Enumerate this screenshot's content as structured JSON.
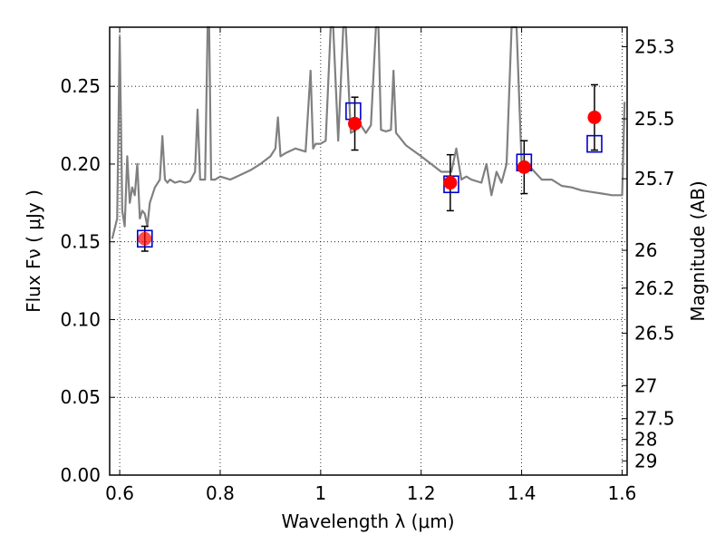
{
  "chart_data": {
    "type": "scatter",
    "xlabel": "Wavelength  λ (μm)",
    "ylabel": "Flux  Fν  ( μJy )",
    "ylabel_right": "Magnitude (AB)",
    "xlim": [
      0.58,
      1.61
    ],
    "ylim": [
      0.0,
      0.288
    ],
    "grid": true,
    "x_ticks": [
      0.6,
      0.8,
      1.0,
      1.2,
      1.4,
      1.6
    ],
    "x_tick_labels": [
      "0.6",
      "0.8",
      "1",
      "1.2",
      "1.4",
      "1.6"
    ],
    "y_ticks": [
      0.0,
      0.05,
      0.1,
      0.15,
      0.2,
      0.25
    ],
    "y_tick_labels": [
      "0.00",
      "0.05",
      "0.10",
      "0.15",
      "0.20",
      "0.25"
    ],
    "mag_ticks": [
      25.3,
      25.5,
      25.7,
      26,
      26.2,
      26.5,
      27,
      27.5,
      28,
      29
    ],
    "mag_tick_labels": [
      "25.3",
      "25.5",
      "25.7",
      "26",
      "26.2",
      "26.5",
      "27",
      "27.5",
      "28",
      "29"
    ],
    "series": [
      {
        "kind": "spectrum",
        "color": "#808080",
        "x": [
          0.585,
          0.595,
          0.6,
          0.605,
          0.61,
          0.615,
          0.62,
          0.625,
          0.63,
          0.635,
          0.64,
          0.645,
          0.65,
          0.655,
          0.66,
          0.67,
          0.68,
          0.685,
          0.69,
          0.695,
          0.7,
          0.71,
          0.72,
          0.73,
          0.74,
          0.75,
          0.755,
          0.76,
          0.765,
          0.77,
          0.775,
          0.778,
          0.782,
          0.786,
          0.79,
          0.8,
          0.82,
          0.84,
          0.86,
          0.88,
          0.9,
          0.91,
          0.915,
          0.92,
          0.93,
          0.95,
          0.97,
          0.98,
          0.985,
          0.99,
          1.0,
          1.01,
          1.02,
          1.025,
          1.035,
          1.045,
          1.05,
          1.06,
          1.07,
          1.08,
          1.09,
          1.1,
          1.11,
          1.115,
          1.12,
          1.13,
          1.14,
          1.145,
          1.15,
          1.17,
          1.2,
          1.22,
          1.24,
          1.26,
          1.27,
          1.28,
          1.29,
          1.3,
          1.32,
          1.33,
          1.34,
          1.35,
          1.36,
          1.37,
          1.38,
          1.39,
          1.4,
          1.41,
          1.42,
          1.44,
          1.46,
          1.48,
          1.5,
          1.52,
          1.54,
          1.56,
          1.58,
          1.6,
          1.605
        ],
        "y": [
          0.152,
          0.165,
          0.282,
          0.17,
          0.16,
          0.205,
          0.175,
          0.185,
          0.18,
          0.2,
          0.165,
          0.17,
          0.168,
          0.16,
          0.175,
          0.185,
          0.19,
          0.218,
          0.19,
          0.188,
          0.19,
          0.188,
          0.189,
          0.188,
          0.189,
          0.195,
          0.235,
          0.19,
          0.19,
          0.19,
          0.288,
          0.288,
          0.19,
          0.19,
          0.19,
          0.192,
          0.19,
          0.193,
          0.196,
          0.2,
          0.205,
          0.21,
          0.23,
          0.205,
          0.207,
          0.21,
          0.208,
          0.26,
          0.21,
          0.213,
          0.213,
          0.215,
          0.288,
          0.288,
          0.215,
          0.288,
          0.288,
          0.22,
          0.222,
          0.225,
          0.22,
          0.225,
          0.288,
          0.288,
          0.222,
          0.221,
          0.222,
          0.26,
          0.22,
          0.212,
          0.205,
          0.2,
          0.195,
          0.195,
          0.21,
          0.19,
          0.192,
          0.19,
          0.188,
          0.2,
          0.18,
          0.195,
          0.188,
          0.2,
          0.288,
          0.288,
          0.2,
          0.198,
          0.197,
          0.19,
          0.19,
          0.186,
          0.185,
          0.183,
          0.182,
          0.181,
          0.18,
          0.18,
          0.24
        ]
      },
      {
        "kind": "observed",
        "color": "#ff0000",
        "marker": "circle",
        "x": [
          0.65,
          1.068,
          1.258,
          1.405,
          1.545
        ],
        "y": [
          0.152,
          0.226,
          0.188,
          0.198,
          0.23
        ],
        "yerr": [
          0.008,
          0.017,
          0.018,
          0.017,
          0.021
        ]
      },
      {
        "kind": "model",
        "color": "#0000cc",
        "marker": "open-square",
        "x": [
          0.65,
          1.065,
          1.26,
          1.405,
          1.545
        ],
        "y": [
          0.152,
          0.234,
          0.187,
          0.201,
          0.213
        ]
      }
    ]
  }
}
